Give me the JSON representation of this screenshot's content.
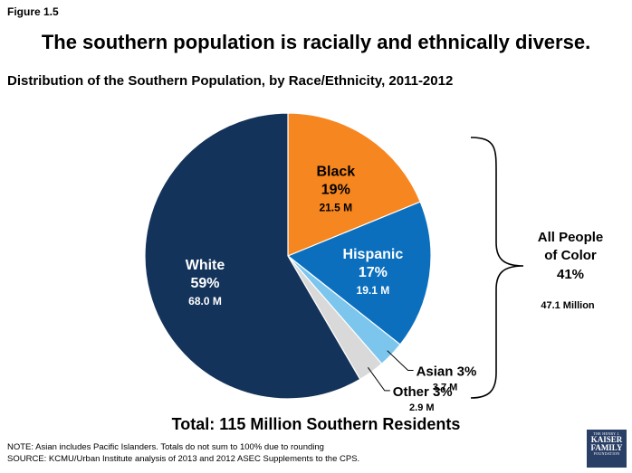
{
  "figure_label": "Figure 1.5",
  "headline": "The southern population is racially and ethnically diverse.",
  "chart_data": {
    "type": "pie",
    "title": "Distribution of the Southern Population, by Race/Ethnicity, 2011-2012",
    "slices": [
      {
        "name": "Black",
        "percent": 19,
        "percent_label": "19%",
        "count_label": "21.5 M",
        "color": "#f6861f",
        "text_color": "#000000"
      },
      {
        "name": "Hispanic",
        "percent": 17,
        "percent_label": "17%",
        "count_label": "19.1 M",
        "color": "#0b6fbe",
        "text_color": "#ffffff"
      },
      {
        "name": "Asian",
        "percent": 3,
        "percent_label": "3%",
        "count_label": "3.7 M",
        "color": "#7cc6ee",
        "text_color": "#000000"
      },
      {
        "name": "Other",
        "percent": 3,
        "percent_label": "3%",
        "count_label": "2.9 M",
        "color": "#d9d9d9",
        "text_color": "#000000"
      },
      {
        "name": "White",
        "percent": 59,
        "percent_label": "59%",
        "count_label": "68.0 M",
        "color": "#14335a",
        "text_color": "#ffffff"
      }
    ],
    "bracket": {
      "lines": [
        "All People",
        "of Color",
        "41%"
      ],
      "count_label": "47.1 Million"
    },
    "total_label": "Total: 115 Million Southern Residents"
  },
  "note": "NOTE: Asian includes Pacific Islanders. Totals do not sum to 100% due to rounding",
  "source": "SOURCE: KCMU/Urban Institute analysis of 2013 and 2012 ASEC Supplements to the CPS.",
  "logo": {
    "line1": "THE HENRY J.",
    "line2": "KAISER",
    "line3": "FAMILY",
    "line4": "FOUNDATION"
  }
}
